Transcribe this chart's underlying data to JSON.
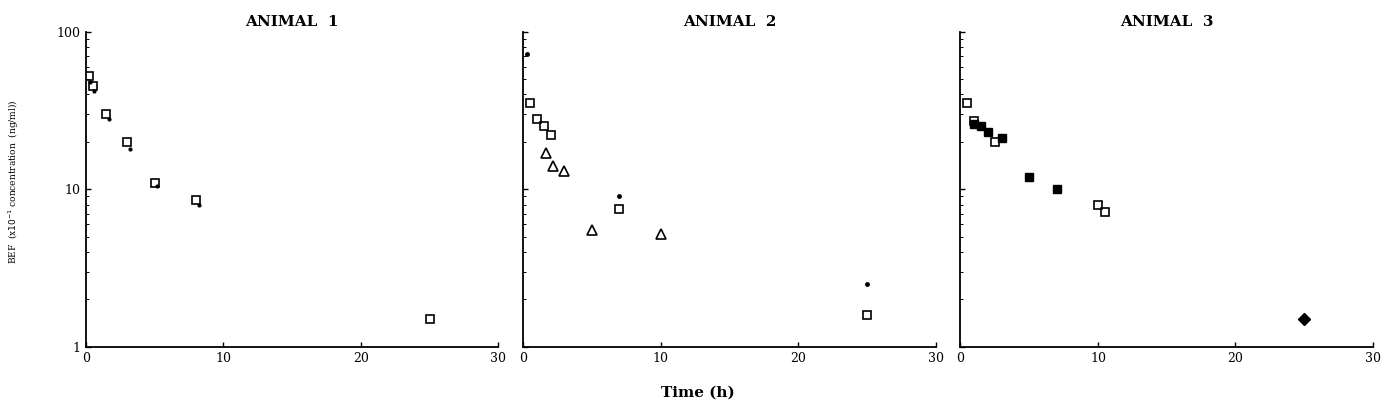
{
  "animal1": {
    "title": "ANIMAL  1",
    "open_squares": {
      "x": [
        0.25,
        0.5,
        1.5,
        3.0,
        5.0,
        8.0,
        25.0
      ],
      "y": [
        52,
        45,
        30,
        20,
        11,
        8.5,
        1.5
      ]
    },
    "small_dots": {
      "x": [
        0.3,
        0.6,
        1.7,
        3.2,
        5.2,
        8.2
      ],
      "y": [
        48,
        42,
        28,
        18,
        10.5,
        8.0
      ]
    }
  },
  "animal2": {
    "title": "ANIMAL  2",
    "open_squares": {
      "x": [
        0.5,
        1.0,
        1.5,
        2.0,
        7.0,
        25.0
      ],
      "y": [
        35,
        28,
        25,
        22,
        7.5,
        1.6
      ]
    },
    "open_triangles": {
      "x": [
        1.7,
        2.2,
        3.0,
        5.0,
        10.0
      ],
      "y": [
        17,
        14,
        13,
        5.5,
        5.2
      ]
    },
    "small_dots": {
      "x": [
        0.25,
        7.0,
        25.0
      ],
      "y": [
        72,
        9.0,
        2.5
      ]
    }
  },
  "animal3": {
    "title": "ANIMAL  3",
    "open_squares": {
      "x": [
        0.5,
        1.0,
        2.5,
        10.0,
        10.5
      ],
      "y": [
        35,
        27,
        20,
        8.0,
        7.2
      ]
    },
    "filled_squares": {
      "x": [
        1.0,
        1.5,
        2.0,
        3.0,
        5.0,
        7.0
      ],
      "y": [
        26,
        25,
        23,
        21,
        12,
        10
      ]
    },
    "filled_diamonds": {
      "x": [
        25.0
      ],
      "y": [
        1.5
      ]
    }
  },
  "xlabel": "Time (h)",
  "ylim": [
    1,
    100
  ],
  "xlim": [
    0,
    30
  ],
  "yticks": [
    1,
    10,
    100
  ],
  "xticks": [
    0,
    10,
    20,
    30
  ],
  "background_color": "#ffffff"
}
